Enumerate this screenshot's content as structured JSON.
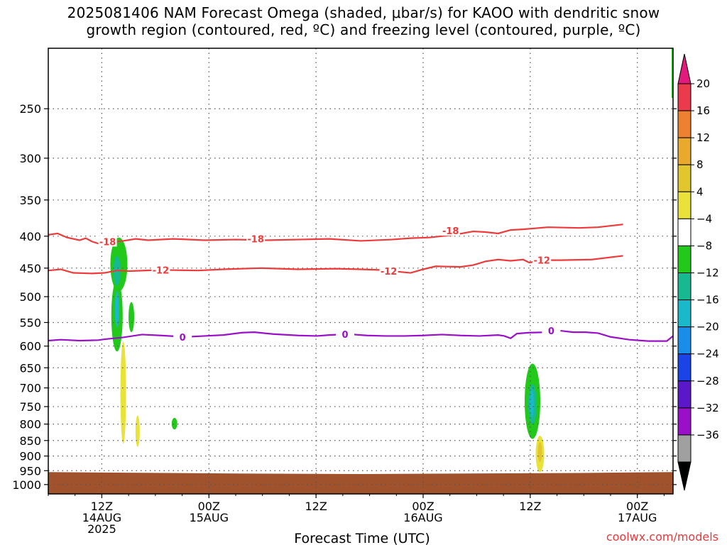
{
  "title": "2025081406 NAM Forecast Omega (shaded, μbar/s) for KAOO with dendritic snow\ngrowth region (contoured, red, ºC) and freezing level (contoured, purple, ºC)",
  "credit": "coolwx.com/models",
  "chart_data": {
    "type": "contour",
    "title": "2025081406 NAM Forecast Omega (shaded, μbar/s) for KAOO with dendritic snow growth region (contoured, red, ºC) and freezing level (contoured, purple, ºC)",
    "xlabel": "Forecast Time (UTC)",
    "ylabel": "",
    "x_range_hours": [
      6,
      76
    ],
    "y_range_hpa": [
      200,
      1035
    ],
    "y_scale": "log",
    "y_ticks": [
      250,
      300,
      350,
      400,
      450,
      500,
      550,
      600,
      650,
      700,
      750,
      800,
      850,
      900,
      950,
      1000
    ],
    "x_ticks": [
      {
        "hour": 12,
        "lines": [
          "12Z",
          "14AUG",
          "2025"
        ]
      },
      {
        "hour": 24,
        "lines": [
          "00Z",
          "15AUG"
        ]
      },
      {
        "hour": 36,
        "lines": [
          "12Z"
        ]
      },
      {
        "hour": 48,
        "lines": [
          "00Z",
          "16AUG"
        ]
      },
      {
        "hour": 60,
        "lines": [
          "12Z"
        ]
      },
      {
        "hour": 72,
        "lines": [
          "00Z",
          "17AUG"
        ]
      },
      {
        "hour": 84,
        "lines": [
          "12Z"
        ]
      }
    ],
    "grid": true,
    "colorbar": {
      "levels": [
        20,
        16,
        12,
        8,
        4,
        -4,
        -8,
        -12,
        -16,
        -20,
        -24,
        -28,
        -32,
        -36
      ],
      "colors": [
        "#ec3a4d",
        "#ee8032",
        "#e8a92c",
        "#e2c62d",
        "#e8e23a",
        "#ffffff",
        "#22c81a",
        "#16b990",
        "#1ab8c8",
        "#1a8de8",
        "#1a44e6",
        "#5a18c8",
        "#9a10c8",
        "#a0a0a0"
      ],
      "top_triangle_color": "#e21a7c",
      "bottom_triangle_color": "#000000"
    },
    "series": [
      {
        "name": "-18",
        "color": "#ee3a3a",
        "points": [
          [
            0,
            398
          ],
          [
            1.5,
            396
          ],
          [
            3,
            402
          ],
          [
            5,
            406
          ],
          [
            6,
            403
          ],
          [
            7,
            408
          ],
          [
            8,
            411
          ],
          [
            10,
            409
          ],
          [
            12,
            407
          ],
          [
            14,
            404
          ],
          [
            16,
            406
          ],
          [
            20,
            404
          ],
          [
            25,
            406
          ],
          [
            30,
            405
          ],
          [
            35,
            406
          ],
          [
            40,
            405
          ],
          [
            45,
            404
          ],
          [
            50,
            407
          ],
          [
            55,
            405
          ],
          [
            58,
            403
          ],
          [
            61,
            402
          ],
          [
            65,
            398
          ],
          [
            68,
            393
          ],
          [
            70,
            394
          ],
          [
            72,
            396
          ],
          [
            74,
            391
          ],
          [
            76,
            390
          ],
          [
            80,
            387
          ],
          [
            85,
            388
          ],
          [
            88,
            387
          ],
          [
            92,
            383
          ]
        ],
        "labels": [
          {
            "x": 9.5,
            "p": 408
          },
          {
            "x": 33.2,
            "p": 404
          },
          {
            "x": 64.4,
            "p": 392
          }
        ]
      },
      {
        "name": "-12",
        "color": "#ee3a3a",
        "points": [
          [
            0,
            454
          ],
          [
            2,
            452
          ],
          [
            4,
            458
          ],
          [
            7,
            459
          ],
          [
            9,
            458
          ],
          [
            11,
            454
          ],
          [
            13,
            455
          ],
          [
            18,
            453
          ],
          [
            24,
            454
          ],
          [
            28,
            452
          ],
          [
            34,
            450
          ],
          [
            40,
            452
          ],
          [
            46,
            451
          ],
          [
            50,
            452
          ],
          [
            53,
            453
          ],
          [
            55,
            455
          ],
          [
            58,
            458
          ],
          [
            60,
            452
          ],
          [
            62,
            447
          ],
          [
            66,
            448
          ],
          [
            68,
            445
          ],
          [
            70,
            439
          ],
          [
            72,
            436
          ],
          [
            74,
            438
          ],
          [
            76,
            436
          ],
          [
            77,
            441
          ],
          [
            79,
            437
          ],
          [
            82,
            437
          ],
          [
            87,
            436
          ],
          [
            92,
            430
          ]
        ],
        "labels": [
          {
            "x": 18,
            "p": 453
          },
          {
            "x": 54.5,
            "p": 455
          },
          {
            "x": 79,
            "p": 437
          }
        ]
      },
      {
        "name": "0",
        "color": "#9a10c8",
        "points": [
          [
            0,
            588
          ],
          [
            2,
            586
          ],
          [
            5,
            588
          ],
          [
            8,
            587
          ],
          [
            9,
            585
          ],
          [
            12,
            581
          ],
          [
            15,
            575
          ],
          [
            18,
            577
          ],
          [
            22,
            580
          ],
          [
            25,
            578
          ],
          [
            28,
            576
          ],
          [
            31,
            571
          ],
          [
            33,
            570
          ],
          [
            36,
            574
          ],
          [
            40,
            577
          ],
          [
            43,
            578
          ],
          [
            45,
            576
          ],
          [
            48,
            574
          ],
          [
            51,
            577
          ],
          [
            54,
            578
          ],
          [
            57,
            578
          ],
          [
            60,
            577
          ],
          [
            63,
            575
          ],
          [
            66,
            577
          ],
          [
            69,
            578
          ],
          [
            72,
            576
          ],
          [
            73,
            578
          ],
          [
            74,
            583
          ],
          [
            75,
            573
          ],
          [
            77,
            571
          ],
          [
            80,
            570
          ],
          [
            82,
            567
          ],
          [
            84,
            570
          ],
          [
            86,
            570
          ],
          [
            88,
            572
          ],
          [
            90,
            580
          ],
          [
            93,
            586
          ],
          [
            96,
            589
          ],
          [
            99,
            589
          ],
          [
            100,
            578
          ]
        ],
        "labels": [
          {
            "x": 21.5,
            "p": 580
          },
          {
            "x": 47.5,
            "p": 574
          },
          {
            "x": 80.5,
            "p": 567
          }
        ]
      }
    ],
    "omega_features": [
      {
        "center": {
          "x": 9.5,
          "p": 470
        },
        "value_range": [
          -16,
          -4
        ]
      },
      {
        "center": {
          "x": 11.0,
          "p": 530
        },
        "value_range": [
          -8,
          -4
        ]
      },
      {
        "center": {
          "x": 9.5,
          "p": 680
        },
        "value_range": [
          4,
          8
        ]
      },
      {
        "center": {
          "x": 12.0,
          "p": 825
        },
        "value_range": [
          4,
          8
        ]
      },
      {
        "center": {
          "x": 20.5,
          "p": 800
        },
        "value_range": [
          -8,
          -4
        ]
      },
      {
        "center": {
          "x": 76.0,
          "p": 740
        },
        "value_range": [
          -16,
          -4
        ]
      },
      {
        "center": {
          "x": 77.5,
          "p": 890
        },
        "value_range": [
          4,
          12
        ]
      }
    ],
    "terrain": {
      "color": "#a0522d",
      "surface_pressure_range": [
        955,
        965
      ]
    }
  }
}
